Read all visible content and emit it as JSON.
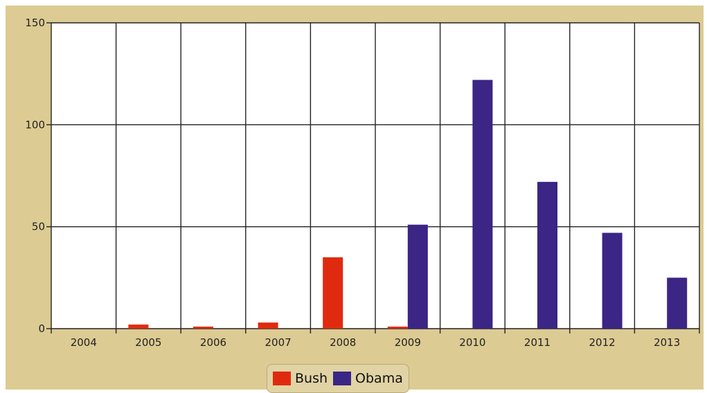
{
  "chart_data": {
    "type": "bar",
    "categories": [
      "2004",
      "2005",
      "2006",
      "2007",
      "2008",
      "2009",
      "2010",
      "2011",
      "2012",
      "2013"
    ],
    "series": [
      {
        "name": "Bush",
        "color": "#e02a10",
        "values": [
          0,
          2,
          1,
          3,
          35,
          1,
          0,
          0,
          0,
          0
        ]
      },
      {
        "name": "Obama",
        "color": "#3b2585",
        "values": [
          0,
          0,
          0,
          0,
          0,
          51,
          122,
          72,
          47,
          25
        ]
      }
    ],
    "ylim": [
      0,
      150
    ],
    "yticks": [
      0,
      50,
      100,
      150
    ],
    "grid": true,
    "legend_position": "bottom"
  },
  "colors": {
    "frame_background": "#dccb93",
    "plot_background": "#ffffff",
    "grid": "#222222"
  }
}
